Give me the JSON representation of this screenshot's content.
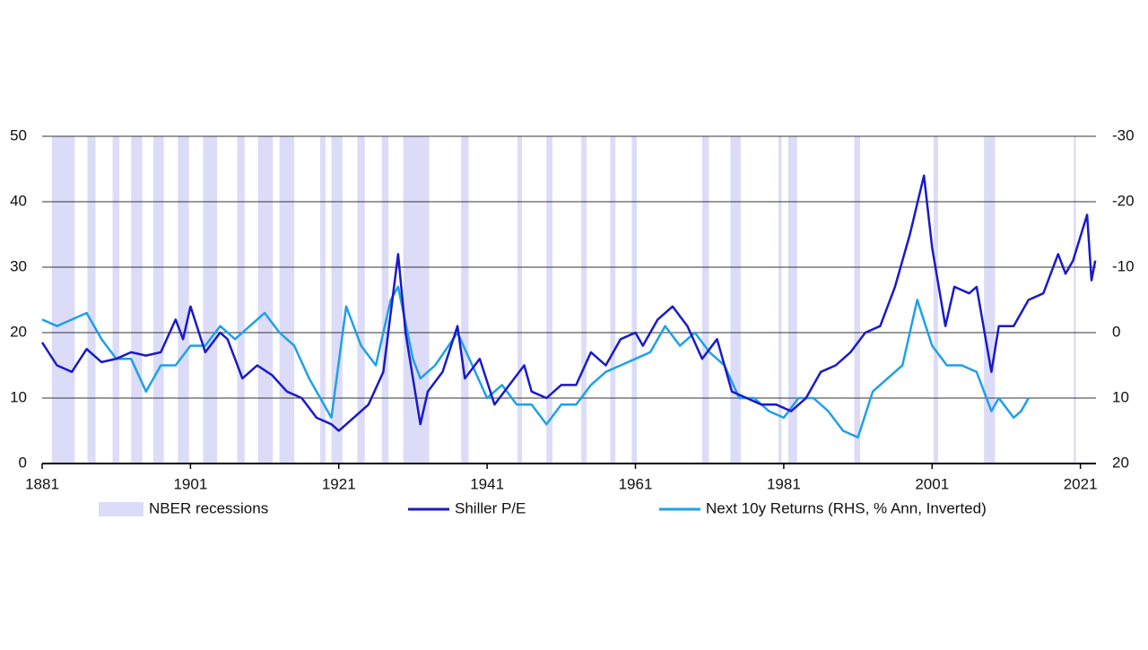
{
  "chart_data": {
    "type": "line",
    "xlim": [
      1881,
      2023.1
    ],
    "xticks": [
      1881,
      1901,
      1921,
      1941,
      1961,
      1981,
      2001,
      2021
    ],
    "ylim": [
      0,
      50
    ],
    "yticks": [
      0,
      10,
      20,
      30,
      40,
      50
    ],
    "y2lim": [
      20,
      -30
    ],
    "y2ticks": [
      -30,
      -20,
      -10,
      0,
      10,
      20
    ],
    "grid": true,
    "recession_label": "NBER recessions",
    "recession_color": "#dcdcf8",
    "recessions": [
      [
        1882.3,
        1885.4
      ],
      [
        1887.1,
        1888.2
      ],
      [
        1890.5,
        1891.4
      ],
      [
        1893,
        1894.5
      ],
      [
        1896,
        1897.4
      ],
      [
        1899.3,
        1900.8
      ],
      [
        1902.7,
        1904.6
      ],
      [
        1907.3,
        1908.3
      ],
      [
        1910.1,
        1912.1
      ],
      [
        1913,
        1915
      ],
      [
        1918.5,
        1919.2
      ],
      [
        1920,
        1921.5
      ],
      [
        1923.5,
        1924.5
      ],
      [
        1926.8,
        1927.7
      ],
      [
        1929.7,
        1933.2
      ],
      [
        1937.5,
        1938.5
      ],
      [
        1945.1,
        1945.7
      ],
      [
        1949,
        1949.8
      ],
      [
        1953.7,
        1954.4
      ],
      [
        1957.6,
        1958.3
      ],
      [
        1960.5,
        1961.2
      ],
      [
        1970,
        1970.9
      ],
      [
        1973.8,
        1975.2
      ],
      [
        1980.3,
        1980.7
      ],
      [
        1981.6,
        1982.8
      ],
      [
        1990.5,
        1991.3
      ],
      [
        2001.2,
        2001.8
      ],
      [
        2008,
        2009.5
      ],
      [
        2020.1,
        2020.4
      ]
    ],
    "series": [
      {
        "name": "Shiller P/E",
        "color": "#1a1ac8",
        "x": [
          1881,
          1883,
          1885,
          1887,
          1889,
          1891,
          1893,
          1895,
          1897,
          1899,
          1900,
          1901,
          1903,
          1905,
          1906,
          1908,
          1910,
          1912,
          1914,
          1916,
          1918,
          1920,
          1921,
          1923,
          1925,
          1927,
          1929,
          1930,
          1932,
          1933,
          1935,
          1937,
          1938,
          1940,
          1942,
          1944,
          1946,
          1947,
          1949,
          1951,
          1953,
          1955,
          1957,
          1959,
          1961,
          1962,
          1964,
          1966,
          1968,
          1970,
          1972,
          1974,
          1976,
          1978,
          1980,
          1982,
          1984,
          1986,
          1988,
          1990,
          1992,
          1994,
          1996,
          1998,
          1999.9,
          2001,
          2002.8,
          2004,
          2006,
          2007,
          2009,
          2010,
          2012,
          2014,
          2016,
          2018,
          2019,
          2020,
          2021.9,
          2022.5,
          2023
        ],
        "values": [
          18.5,
          15,
          14,
          17.5,
          15.5,
          16,
          17,
          16.5,
          17,
          22,
          19,
          24,
          17,
          20,
          19,
          13,
          15,
          13.5,
          11,
          10,
          7,
          6,
          5,
          7,
          9,
          14,
          32,
          20,
          6,
          11,
          14,
          21,
          13,
          16,
          9,
          12,
          15,
          11,
          10,
          12,
          12,
          17,
          15,
          19,
          20,
          18,
          22,
          24,
          21,
          16,
          19,
          11,
          10,
          9,
          9,
          8,
          10,
          14,
          15,
          17,
          20,
          21,
          27,
          35,
          44,
          33,
          21,
          27,
          26,
          27,
          14,
          21,
          21,
          25,
          26,
          32,
          29,
          31,
          38,
          28,
          31
        ]
      },
      {
        "name": "Next 10y Returns (RHS, % Ann, Inverted)",
        "color": "#1fa0e8",
        "axis": "y2",
        "x": [
          1881,
          1883,
          1885,
          1887,
          1889,
          1891,
          1893,
          1895,
          1897,
          1899,
          1901,
          1903,
          1905,
          1907,
          1909,
          1911,
          1913,
          1915,
          1917,
          1919,
          1920,
          1922,
          1924,
          1926,
          1928,
          1929,
          1931,
          1932,
          1934,
          1937,
          1939,
          1941,
          1943,
          1945,
          1947,
          1949,
          1951,
          1953,
          1955,
          1957,
          1959,
          1961,
          1963,
          1965,
          1967,
          1969,
          1971,
          1973,
          1975,
          1977,
          1979,
          1981,
          1983,
          1985,
          1987,
          1989,
          1991,
          1993,
          1995,
          1997,
          1999,
          2001,
          2003,
          2005,
          2007,
          2009,
          2010,
          2012,
          2013,
          2014
        ],
        "values": [
          -2,
          -1,
          -2,
          -3,
          1,
          4,
          4,
          9,
          5,
          5,
          2,
          2,
          -1,
          1,
          -1,
          -3,
          0,
          2,
          7,
          11,
          13,
          -4,
          2,
          5,
          -5,
          -7,
          4,
          7,
          5,
          0,
          5,
          10,
          8,
          11,
          11,
          14,
          11,
          11,
          8,
          6,
          5,
          4,
          3,
          -1,
          2,
          0,
          3,
          5,
          10,
          10,
          12,
          13,
          10,
          10,
          12,
          15,
          16,
          9,
          7,
          5,
          -5,
          2,
          5,
          5,
          6,
          12,
          10,
          13,
          12,
          10
        ]
      }
    ]
  }
}
